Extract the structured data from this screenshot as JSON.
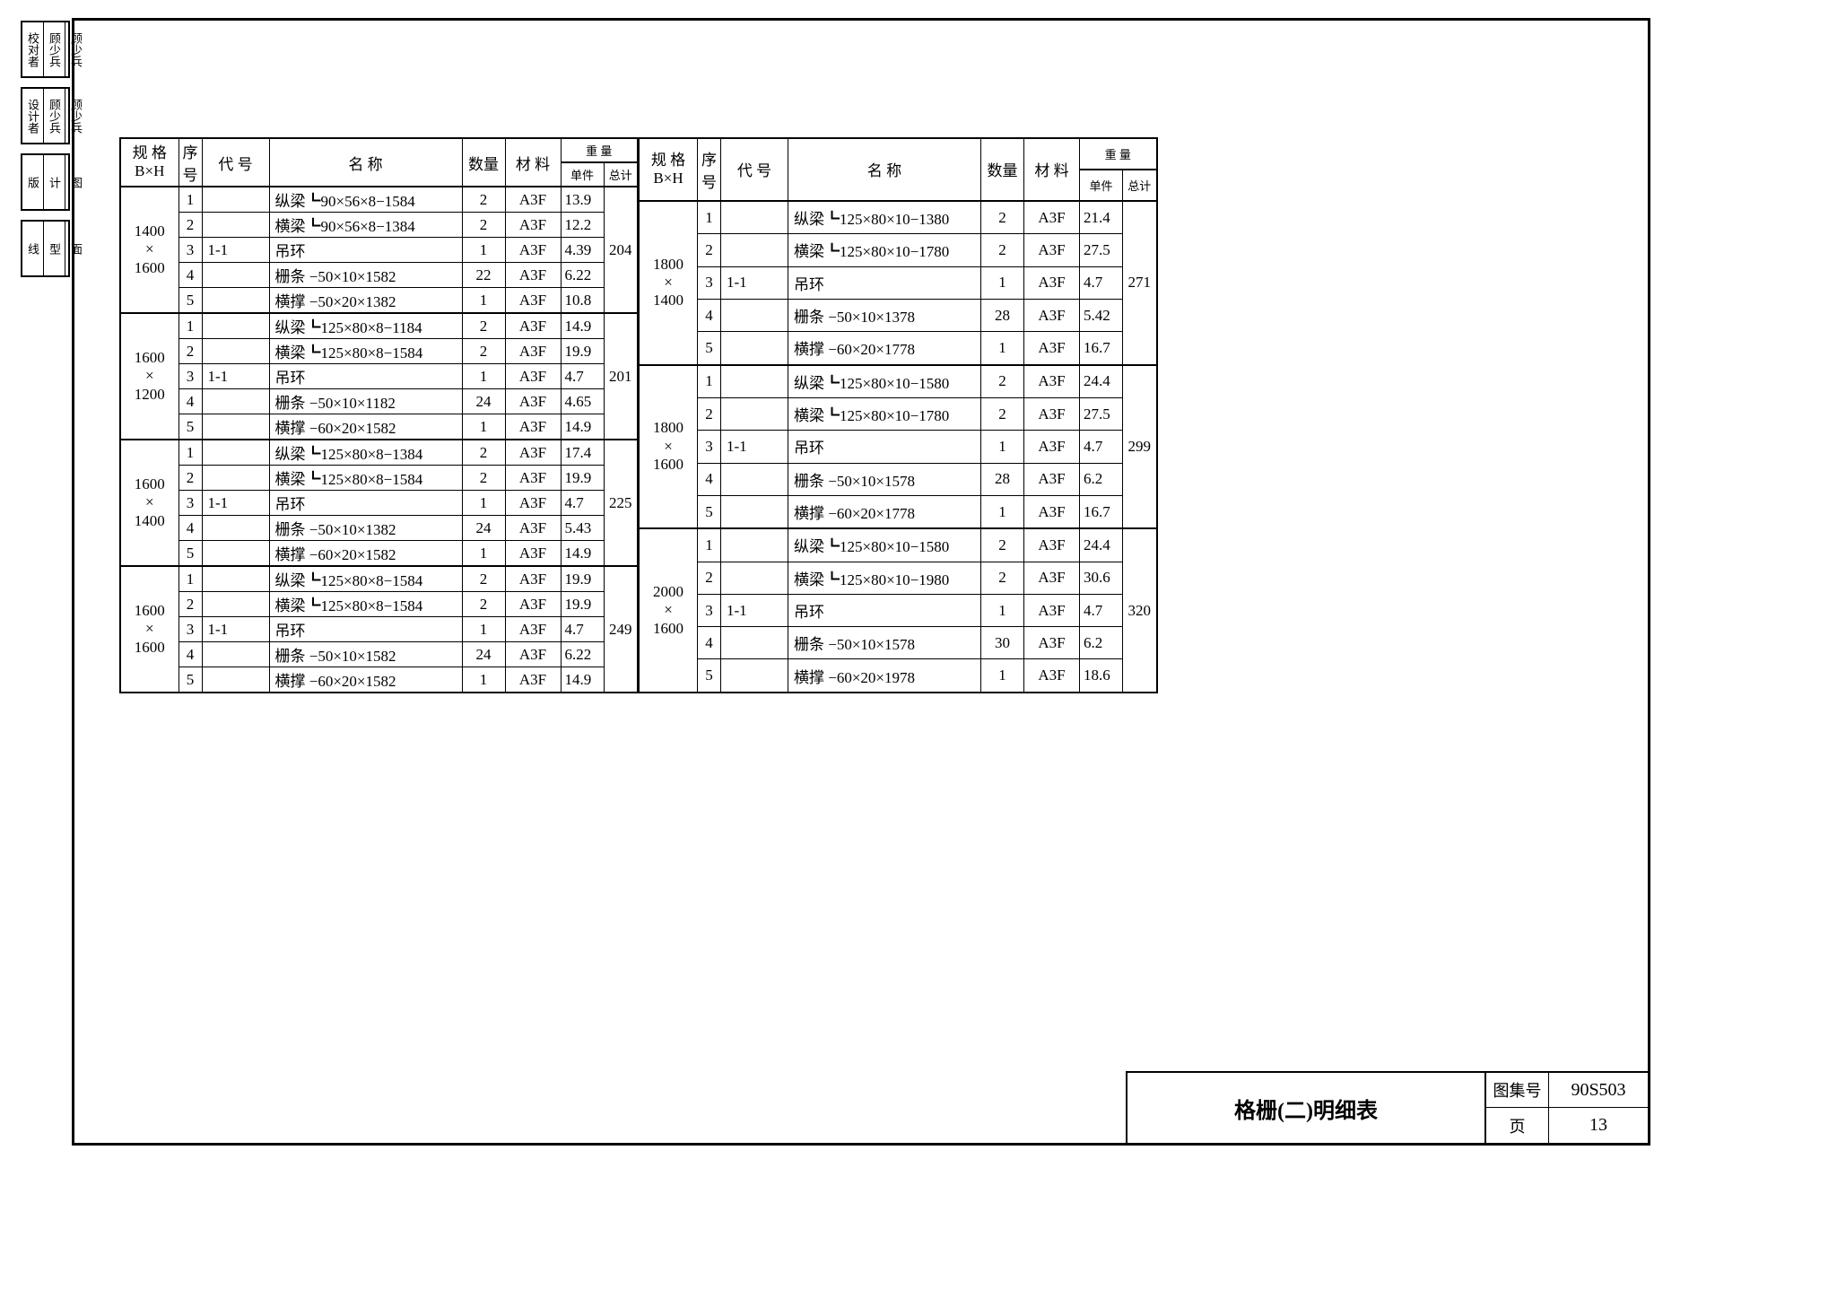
{
  "meta": {
    "title": "格栅(二)明细表",
    "drawing_set_label": "图集号",
    "drawing_set_value": "90S503",
    "page_label": "页",
    "page_value": "13"
  },
  "headers": {
    "spec": "规 格\nB×H",
    "seq": "序号",
    "code": "代  号",
    "name": "名      称",
    "qty": "数量",
    "material": "材  料",
    "weight": "重  量",
    "unit": "单件",
    "total": "总计"
  },
  "left_groups": [
    {
      "spec": "1400\n×\n1600",
      "total": "204",
      "rows": [
        {
          "seq": "1",
          "code": "",
          "name": "纵梁┗90×56×8−1584",
          "qty": "2",
          "mat": "A3F",
          "unit": "13.9"
        },
        {
          "seq": "2",
          "code": "",
          "name": "横梁┗90×56×8−1384",
          "qty": "2",
          "mat": "A3F",
          "unit": "12.2"
        },
        {
          "seq": "3",
          "code": "1-1",
          "name": "吊环",
          "qty": "1",
          "mat": "A3F",
          "unit": "4.39"
        },
        {
          "seq": "4",
          "code": "",
          "name": "栅条 −50×10×1582",
          "qty": "22",
          "mat": "A3F",
          "unit": "6.22"
        },
        {
          "seq": "5",
          "code": "",
          "name": "横撑 −50×20×1382",
          "qty": "1",
          "mat": "A3F",
          "unit": "10.8"
        }
      ]
    },
    {
      "spec": "1600\n×\n1200",
      "total": "201",
      "rows": [
        {
          "seq": "1",
          "code": "",
          "name": "纵梁┗125×80×8−1184",
          "qty": "2",
          "mat": "A3F",
          "unit": "14.9"
        },
        {
          "seq": "2",
          "code": "",
          "name": "横梁┗125×80×8−1584",
          "qty": "2",
          "mat": "A3F",
          "unit": "19.9"
        },
        {
          "seq": "3",
          "code": "1-1",
          "name": "吊环",
          "qty": "1",
          "mat": "A3F",
          "unit": "4.7"
        },
        {
          "seq": "4",
          "code": "",
          "name": "栅条 −50×10×1182",
          "qty": "24",
          "mat": "A3F",
          "unit": "4.65"
        },
        {
          "seq": "5",
          "code": "",
          "name": "横撑 −60×20×1582",
          "qty": "1",
          "mat": "A3F",
          "unit": "14.9"
        }
      ]
    },
    {
      "spec": "1600\n×\n1400",
      "total": "225",
      "rows": [
        {
          "seq": "1",
          "code": "",
          "name": "纵梁┗125×80×8−1384",
          "qty": "2",
          "mat": "A3F",
          "unit": "17.4"
        },
        {
          "seq": "2",
          "code": "",
          "name": "横梁┗125×80×8−1584",
          "qty": "2",
          "mat": "A3F",
          "unit": "19.9"
        },
        {
          "seq": "3",
          "code": "1-1",
          "name": "吊环",
          "qty": "1",
          "mat": "A3F",
          "unit": "4.7"
        },
        {
          "seq": "4",
          "code": "",
          "name": "栅条 −50×10×1382",
          "qty": "24",
          "mat": "A3F",
          "unit": "5.43"
        },
        {
          "seq": "5",
          "code": "",
          "name": "横撑 −60×20×1582",
          "qty": "1",
          "mat": "A3F",
          "unit": "14.9"
        }
      ]
    },
    {
      "spec": "1600\n×\n1600",
      "total": "249",
      "rows": [
        {
          "seq": "1",
          "code": "",
          "name": "纵梁┗125×80×8−1584",
          "qty": "2",
          "mat": "A3F",
          "unit": "19.9"
        },
        {
          "seq": "2",
          "code": "",
          "name": "横梁┗125×80×8−1584",
          "qty": "2",
          "mat": "A3F",
          "unit": "19.9"
        },
        {
          "seq": "3",
          "code": "1-1",
          "name": "吊环",
          "qty": "1",
          "mat": "A3F",
          "unit": "4.7"
        },
        {
          "seq": "4",
          "code": "",
          "name": "栅条 −50×10×1582",
          "qty": "24",
          "mat": "A3F",
          "unit": "6.22"
        },
        {
          "seq": "5",
          "code": "",
          "name": "横撑 −60×20×1582",
          "qty": "1",
          "mat": "A3F",
          "unit": "14.9"
        }
      ]
    }
  ],
  "right_groups": [
    {
      "spec": "1800\n×\n1400",
      "total": "271",
      "rows": [
        {
          "seq": "1",
          "code": "",
          "name": "纵梁┗125×80×10−1380",
          "qty": "2",
          "mat": "A3F",
          "unit": "21.4"
        },
        {
          "seq": "2",
          "code": "",
          "name": "横梁┗125×80×10−1780",
          "qty": "2",
          "mat": "A3F",
          "unit": "27.5"
        },
        {
          "seq": "3",
          "code": "1-1",
          "name": "吊环",
          "qty": "1",
          "mat": "A3F",
          "unit": "4.7"
        },
        {
          "seq": "4",
          "code": "",
          "name": "栅条 −50×10×1378",
          "qty": "28",
          "mat": "A3F",
          "unit": "5.42"
        },
        {
          "seq": "5",
          "code": "",
          "name": "横撑 −60×20×1778",
          "qty": "1",
          "mat": "A3F",
          "unit": "16.7"
        }
      ]
    },
    {
      "spec": "1800\n×\n1600",
      "total": "299",
      "rows": [
        {
          "seq": "1",
          "code": "",
          "name": "纵梁┗125×80×10−1580",
          "qty": "2",
          "mat": "A3F",
          "unit": "24.4"
        },
        {
          "seq": "2",
          "code": "",
          "name": "横梁┗125×80×10−1780",
          "qty": "2",
          "mat": "A3F",
          "unit": "27.5"
        },
        {
          "seq": "3",
          "code": "1-1",
          "name": "吊环",
          "qty": "1",
          "mat": "A3F",
          "unit": "4.7"
        },
        {
          "seq": "4",
          "code": "",
          "name": "栅条 −50×10×1578",
          "qty": "28",
          "mat": "A3F",
          "unit": "6.2"
        },
        {
          "seq": "5",
          "code": "",
          "name": "横撑 −60×20×1778",
          "qty": "1",
          "mat": "A3F",
          "unit": "16.7"
        }
      ]
    },
    {
      "spec": "2000\n×\n1600",
      "total": "320",
      "rows": [
        {
          "seq": "1",
          "code": "",
          "name": "纵梁┗125×80×10−1580",
          "qty": "2",
          "mat": "A3F",
          "unit": "24.4"
        },
        {
          "seq": "2",
          "code": "",
          "name": "横梁┗125×80×10−1980",
          "qty": "2",
          "mat": "A3F",
          "unit": "30.6"
        },
        {
          "seq": "3",
          "code": "1-1",
          "name": "吊环",
          "qty": "1",
          "mat": "A3F",
          "unit": "4.7"
        },
        {
          "seq": "4",
          "code": "",
          "name": "栅条 −50×10×1578",
          "qty": "30",
          "mat": "A3F",
          "unit": "6.2"
        },
        {
          "seq": "5",
          "code": "",
          "name": "横撑 −60×20×1978",
          "qty": "1",
          "mat": "A3F",
          "unit": "18.6"
        }
      ]
    }
  ],
  "side_stamps": [
    [
      "校对者",
      "顾少兵",
      "顾少兵"
    ],
    [
      "设计者",
      "顾少兵",
      "顾少兵"
    ],
    [
      "版",
      "计",
      "图"
    ],
    [
      "线",
      "型",
      "面"
    ]
  ]
}
